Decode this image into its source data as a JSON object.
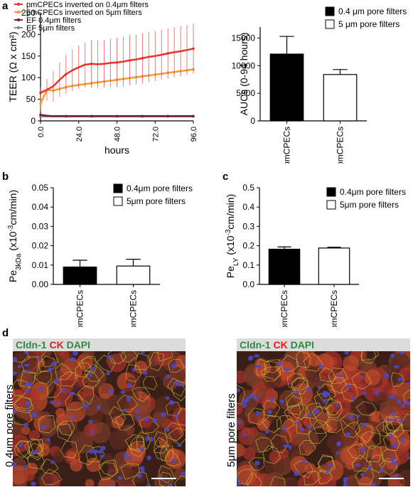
{
  "panels": {
    "a": "a",
    "b": "b",
    "c": "c",
    "d": "d"
  },
  "chart_data": [
    {
      "id": "a_left",
      "type": "line",
      "xlabel": "hours",
      "ylabel": "TEER (Ω x cm²)",
      "xlim": [
        0,
        96
      ],
      "ylim": [
        0,
        250
      ],
      "xticks": [
        "0.0",
        "24.0",
        "48.0",
        "72.0",
        "96.0"
      ],
      "yticks": [
        "0",
        "50",
        "100",
        "150",
        "200",
        "250"
      ],
      "legend_position": "top",
      "series": [
        {
          "name": "pmCPECs inverted on 0.4μm filters",
          "color": "#e8322e",
          "x": [
            0,
            4,
            8,
            12,
            16,
            20,
            24,
            28,
            32,
            36,
            40,
            44,
            48,
            52,
            56,
            60,
            64,
            68,
            72,
            76,
            80,
            84,
            88,
            92,
            96
          ],
          "y": [
            65,
            72,
            80,
            95,
            108,
            117,
            124,
            130,
            132,
            131,
            132,
            134,
            135,
            137,
            140,
            142,
            145,
            148,
            150,
            153,
            156,
            159,
            161,
            164,
            167
          ],
          "err": [
            12,
            25,
            35,
            40,
            45,
            48,
            50,
            52,
            55,
            55,
            55,
            56,
            57,
            57,
            58,
            58,
            58,
            58,
            58,
            58,
            58,
            58,
            58,
            58,
            58
          ]
        },
        {
          "name": "pmCPECs inverted on 5μm filters",
          "color": "#f29a36",
          "x": [
            0,
            4,
            8,
            12,
            16,
            20,
            24,
            28,
            32,
            36,
            40,
            44,
            48,
            52,
            56,
            60,
            64,
            68,
            72,
            76,
            80,
            84,
            88,
            92,
            96
          ],
          "y": [
            40,
            72,
            70,
            74,
            78,
            81,
            83,
            85,
            87,
            89,
            91,
            93,
            95,
            97,
            99,
            101,
            103,
            105,
            107,
            109,
            111,
            113,
            115,
            117,
            119
          ],
          "err": [
            18,
            6,
            5,
            5,
            5,
            5,
            5,
            5,
            5,
            5,
            5,
            5,
            5,
            5,
            5,
            5,
            5,
            5,
            5,
            5,
            5,
            5,
            5,
            5,
            5
          ]
        },
        {
          "name": "EF 0.4μm filters",
          "color": "#7a1c3c",
          "x": [
            0,
            4,
            8,
            12,
            16,
            20,
            24,
            28,
            32,
            36,
            40,
            44,
            48,
            52,
            56,
            60,
            64,
            68,
            72,
            76,
            80,
            84,
            88,
            92,
            96
          ],
          "y": [
            14,
            12,
            11,
            11,
            11,
            11,
            11,
            11,
            11,
            11,
            11,
            11,
            11,
            11,
            11,
            11,
            11,
            11,
            11,
            11,
            11,
            11,
            11,
            11,
            11
          ],
          "err": [
            5,
            2,
            2,
            2,
            2,
            2,
            2,
            2,
            2,
            2,
            2,
            2,
            2,
            2,
            2,
            2,
            2,
            2,
            2,
            2,
            2,
            2,
            2,
            2,
            2
          ]
        },
        {
          "name": "EF 5μm filters",
          "color": "#8a8a8a",
          "x": [
            0,
            4,
            8,
            12,
            16,
            20,
            24,
            28,
            32,
            36,
            40,
            44,
            48,
            52,
            56,
            60,
            64,
            68,
            72,
            76,
            80,
            84,
            88,
            92,
            96
          ],
          "y": [
            10,
            10,
            10,
            10,
            10,
            10,
            10,
            10,
            10,
            10,
            10,
            10,
            10,
            10,
            10,
            10,
            10,
            10,
            10,
            10,
            10,
            10,
            10,
            10,
            10
          ],
          "err": [
            2,
            1,
            1,
            1,
            1,
            1,
            1,
            1,
            1,
            1,
            1,
            1,
            1,
            1,
            1,
            1,
            1,
            1,
            1,
            1,
            1,
            1,
            1,
            1,
            1
          ]
        }
      ]
    },
    {
      "id": "a_right",
      "type": "bar",
      "ylabel": "AUCs (0-94 hours)",
      "ylim": [
        0,
        17000
      ],
      "yticks": [
        "0",
        "5000",
        "10000",
        "15000"
      ],
      "categories": [
        "pmCPECs",
        "pmCPECs"
      ],
      "values": [
        12100,
        8400
      ],
      "errors": [
        3200,
        900
      ],
      "fills": [
        "#000000",
        "#ffffff"
      ],
      "legend_position": "top-right",
      "legend": [
        "0.4 μm pore filters",
        "5 μm pore filters"
      ]
    },
    {
      "id": "b",
      "type": "bar",
      "ylabel_main": "Pe",
      "ylabel_sub": "3kDa",
      "ylabel_rest1": " (x10",
      "ylabel_sup": "-3",
      "ylabel_rest2": "cm/min)",
      "ylim": [
        0,
        0.05
      ],
      "yticks": [
        "0.00",
        "0.01",
        "0.02",
        "0.03",
        "0.04",
        "0.05"
      ],
      "categories": [
        "pmCPECs",
        "pmCPECs"
      ],
      "values": [
        0.009,
        0.0095
      ],
      "errors": [
        0.0035,
        0.0035
      ],
      "fills": [
        "#000000",
        "#ffffff"
      ],
      "legend_position": "top-right",
      "legend": [
        "0.4μm pore filters",
        "5μm pore filters"
      ]
    },
    {
      "id": "c",
      "type": "bar",
      "ylabel_main": "Pe",
      "ylabel_sub": "LY",
      "ylabel_rest1": " (x10",
      "ylabel_sup": "-3",
      "ylabel_rest2": "cm/min)",
      "ylim": [
        0,
        0.5
      ],
      "yticks": [
        "0.0",
        "0.1",
        "0.2",
        "0.3",
        "0.4",
        "0.5"
      ],
      "categories": [
        "pmCPECs",
        "pmCPECs"
      ],
      "values": [
        0.182,
        0.188
      ],
      "errors": [
        0.012,
        0.004
      ],
      "fills": [
        "#000000",
        "#ffffff"
      ],
      "legend_position": "top-right",
      "legend": [
        "0.4μm pore filters",
        "5μm pore filters"
      ]
    }
  ],
  "micrographs": [
    {
      "side_label": "0.4μm pore filters",
      "stain": [
        {
          "text": "Cldn-1",
          "color": "#2e8b3e"
        },
        {
          "text": " CK",
          "color": "#e02020"
        },
        {
          "text": " DAPI",
          "color": "#2e8b3e"
        }
      ]
    },
    {
      "side_label": "5μm pore filters",
      "stain": [
        {
          "text": "Cldn-1",
          "color": "#2e8b3e"
        },
        {
          "text": " CK",
          "color": "#e02020"
        },
        {
          "text": " DAPI",
          "color": "#2e8b3e"
        }
      ]
    }
  ]
}
